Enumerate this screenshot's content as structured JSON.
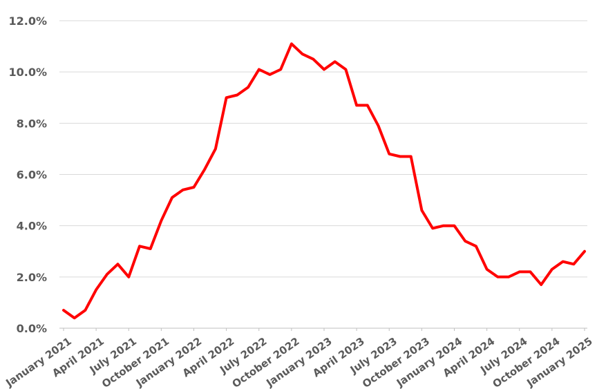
{
  "chart_data": {
    "type": "line",
    "title": "",
    "xlabel": "",
    "ylabel": "",
    "ylim": [
      0,
      12
    ],
    "y_ticks": [
      "0.0%",
      "2.0%",
      "4.0%",
      "6.0%",
      "8.0%",
      "10.0%",
      "12.0%"
    ],
    "y_tick_values": [
      0,
      2,
      4,
      6,
      8,
      10,
      12
    ],
    "grid": true,
    "legend": "none",
    "x_tick_labels": [
      {
        "label": "January 2021",
        "month": "2021-01"
      },
      {
        "label": "April 2021",
        "month": "2021-04"
      },
      {
        "label": "July 2021",
        "month": "2021-07"
      },
      {
        "label": "October 2021",
        "month": "2021-10"
      },
      {
        "label": "January 2022",
        "month": "2022-01"
      },
      {
        "label": "April 2022",
        "month": "2022-04"
      },
      {
        "label": "July 2022",
        "month": "2022-07"
      },
      {
        "label": "October 2022",
        "month": "2022-10"
      },
      {
        "label": "January 2023",
        "month": "2023-01"
      },
      {
        "label": "April 2023",
        "month": "2023-04"
      },
      {
        "label": "July 2023",
        "month": "2023-07"
      },
      {
        "label": "October 2023",
        "month": "2023-10"
      },
      {
        "label": "January 2024",
        "month": "2024-01"
      },
      {
        "label": "April 2024",
        "month": "2024-04"
      },
      {
        "label": "July 2024",
        "month": "2024-07"
      },
      {
        "label": "October 2024",
        "month": "2024-10"
      },
      {
        "label": "January 2025",
        "month": "2025-01"
      }
    ],
    "x": [
      "2021-01",
      "2021-02",
      "2021-03",
      "2021-04",
      "2021-05",
      "2021-06",
      "2021-07",
      "2021-08",
      "2021-09",
      "2021-10",
      "2021-11",
      "2021-12",
      "2022-01",
      "2022-02",
      "2022-03",
      "2022-04",
      "2022-05",
      "2022-06",
      "2022-07",
      "2022-08",
      "2022-09",
      "2022-10",
      "2022-11",
      "2022-12",
      "2023-01",
      "2023-02",
      "2023-03",
      "2023-04",
      "2023-05",
      "2023-06",
      "2023-07",
      "2023-08",
      "2023-09",
      "2023-10",
      "2023-11",
      "2023-12",
      "2024-01",
      "2024-02",
      "2024-03",
      "2024-04",
      "2024-05",
      "2024-06",
      "2024-07",
      "2024-08",
      "2024-09",
      "2024-10",
      "2024-11",
      "2024-12",
      "2025-01"
    ],
    "series": [
      {
        "color": "#ff0000",
        "values": [
          0.7,
          0.4,
          0.7,
          1.5,
          2.1,
          2.5,
          2.0,
          3.2,
          3.1,
          4.2,
          5.1,
          5.4,
          5.5,
          6.2,
          7.0,
          9.0,
          9.1,
          9.4,
          10.1,
          9.9,
          10.1,
          11.1,
          10.7,
          10.5,
          10.1,
          10.4,
          10.1,
          8.7,
          8.7,
          7.9,
          6.8,
          6.7,
          6.7,
          4.6,
          3.9,
          4.0,
          4.0,
          3.4,
          3.2,
          2.3,
          2.0,
          2.0,
          2.2,
          2.2,
          1.7,
          2.3,
          2.6,
          2.5,
          3.0
        ]
      }
    ]
  }
}
